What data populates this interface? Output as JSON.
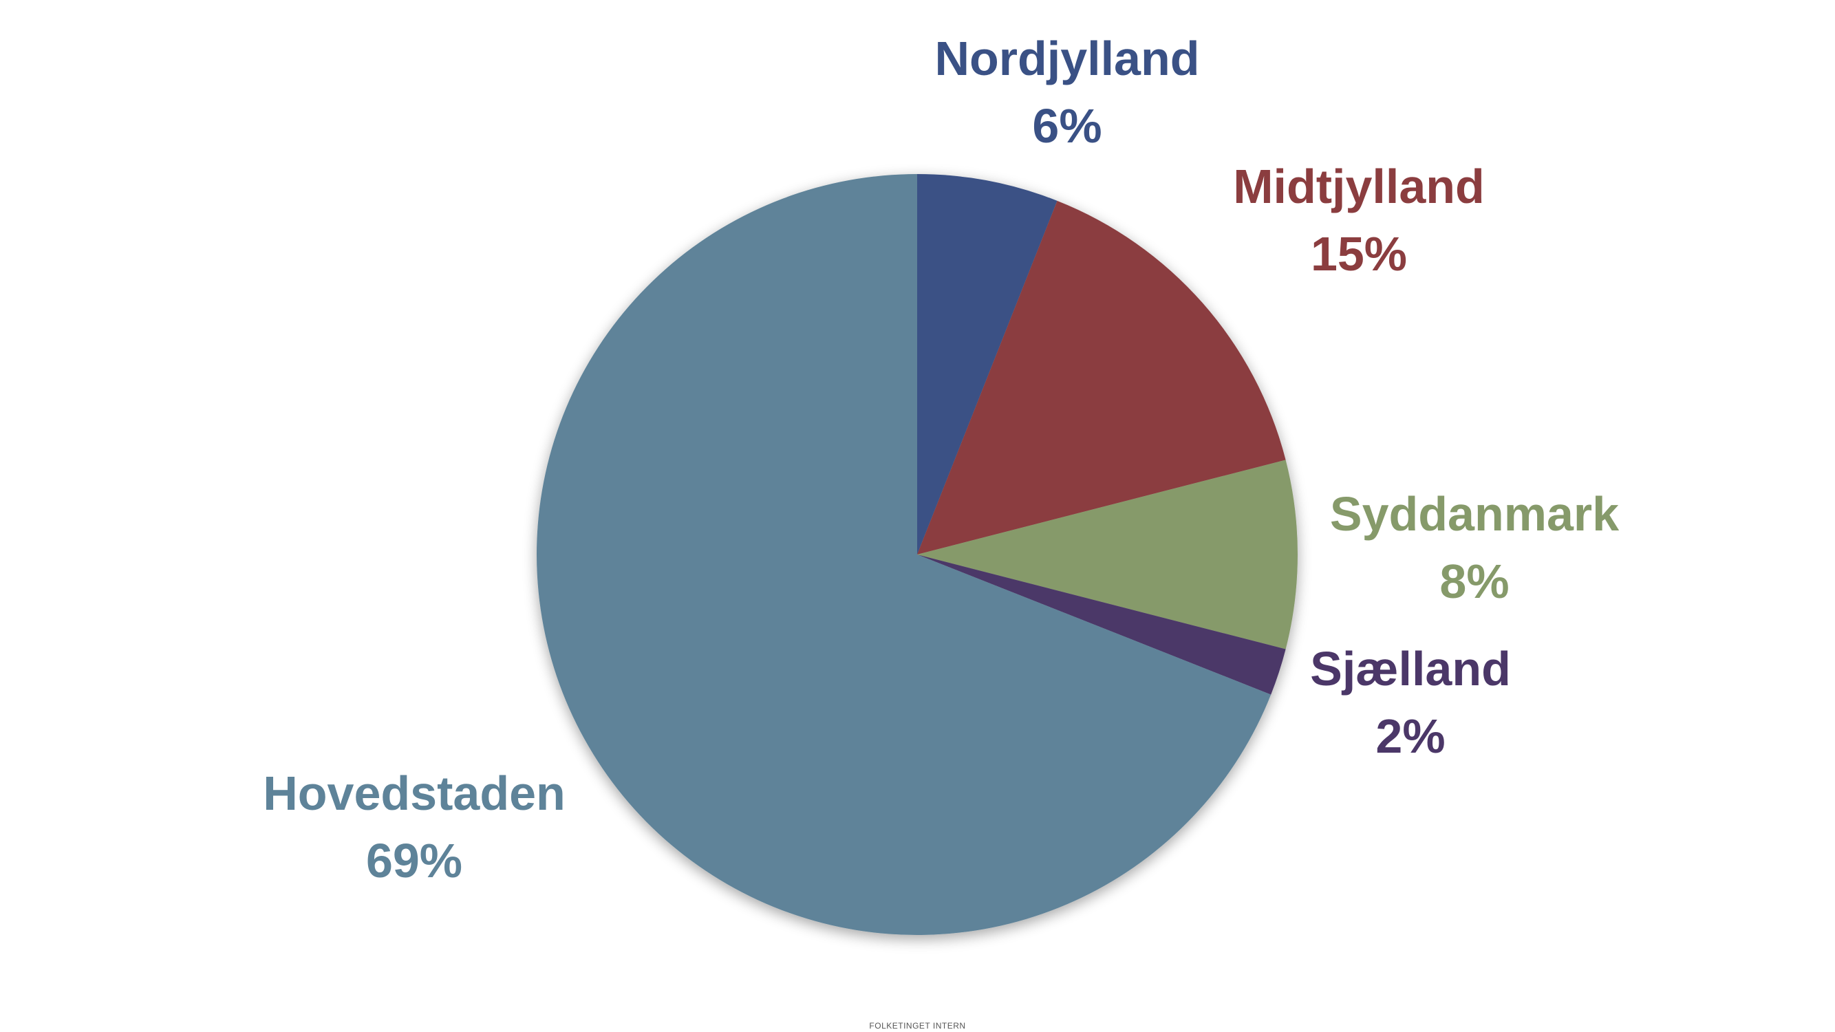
{
  "footer": "FOLKETINGET INTERN",
  "chart_data": {
    "type": "pie",
    "title": "",
    "slices": [
      {
        "label": "Nordjylland",
        "value": 6,
        "display": "6%",
        "color": "#3A5185"
      },
      {
        "label": "Midtjylland",
        "value": 15,
        "display": "15%",
        "color": "#8B3D3F"
      },
      {
        "label": "Syddanmark",
        "value": 8,
        "display": "8%",
        "color": "#869A6A"
      },
      {
        "label": "Sjælland",
        "value": 2,
        "display": "2%",
        "color": "#4B3768"
      },
      {
        "label": "Hovedstaden",
        "value": 69,
        "display": "69%",
        "color": "#5E8399"
      }
    ],
    "start_angle_deg": 0,
    "direction": "clockwise",
    "legend": "none",
    "labels": "outside"
  }
}
